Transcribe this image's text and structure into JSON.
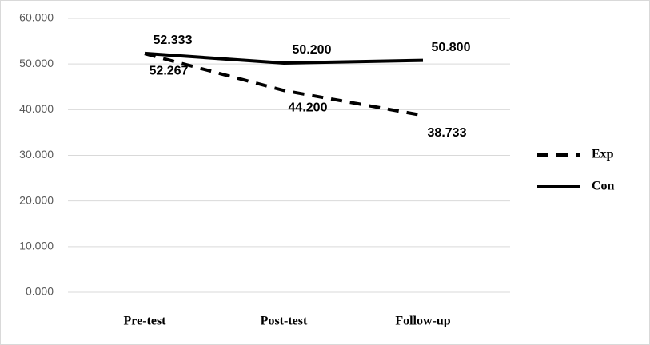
{
  "chart_data": {
    "type": "line",
    "categories": [
      "Pre-test",
      "Post-test",
      "Follow-up"
    ],
    "series": [
      {
        "name": "Exp",
        "color": "#000000",
        "dashed": true,
        "values": [
          52.267,
          44.2,
          38.733
        ],
        "value_labels": [
          "52.267",
          "44.200",
          "38.733"
        ]
      },
      {
        "name": "Con",
        "color": "#000000",
        "dashed": false,
        "values": [
          52.333,
          50.2,
          50.8
        ],
        "value_labels": [
          "52.333",
          "50.200",
          "50.800"
        ]
      }
    ],
    "ylim": [
      0,
      60
    ],
    "yticks": [
      {
        "value": 0,
        "label": "0.000"
      },
      {
        "value": 10,
        "label": "10.000"
      },
      {
        "value": 20,
        "label": "20.000"
      },
      {
        "value": 30,
        "label": "30.000"
      },
      {
        "value": 40,
        "label": "40.000"
      },
      {
        "value": 50,
        "label": "50.000"
      },
      {
        "value": 60,
        "label": "60.000"
      }
    ],
    "grid": true,
    "legend": "right"
  }
}
